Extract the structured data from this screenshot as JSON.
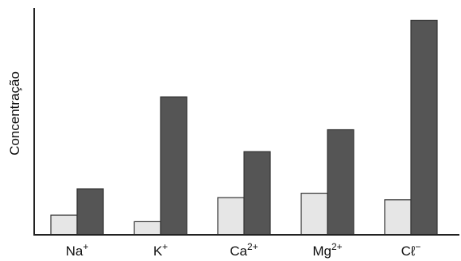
{
  "chart_data": {
    "type": "bar",
    "title": "",
    "xlabel": "",
    "ylabel": "Concentração",
    "categories": [
      {
        "base": "Na",
        "sup": "+"
      },
      {
        "base": "K",
        "sup": "+"
      },
      {
        "base": "Ca",
        "sup": "2+"
      },
      {
        "base": "Mg",
        "sup": "2+"
      },
      {
        "base": "Cℓ",
        "sup": "−"
      }
    ],
    "series": [
      {
        "values": [
          0.09,
          0.06,
          0.17,
          0.19,
          0.16
        ],
        "color": "#e6e6e6"
      },
      {
        "values": [
          0.21,
          0.63,
          0.38,
          0.48,
          0.98
        ],
        "color": "#555555"
      }
    ],
    "ylim": [
      0,
      1
    ],
    "grid": false,
    "legend": "none"
  }
}
